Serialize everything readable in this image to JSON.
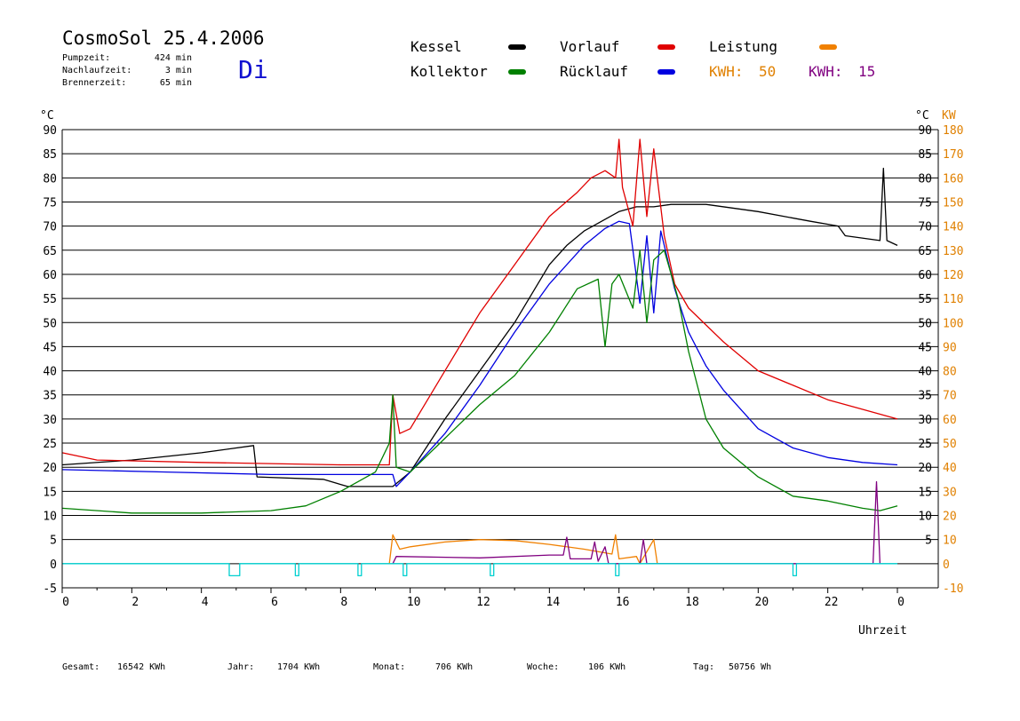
{
  "header": {
    "title": "CosmoSol 25.4.2006",
    "weekday": "Di",
    "stats": [
      {
        "label": "Pumpzeit:",
        "value": "424 min"
      },
      {
        "label": "Nachlaufzeit:",
        "value": "3 min"
      },
      {
        "label": "Brennerzeit:",
        "value": "65 min"
      }
    ]
  },
  "legend": {
    "items": [
      {
        "label": "Kessel",
        "color": "#000000"
      },
      {
        "label": "Vorlauf",
        "color": "#e00000"
      },
      {
        "label": "Leistung",
        "color": "#f08000"
      },
      {
        "label": "Kollektor",
        "color": "#008000"
      },
      {
        "label": "Rücklauf",
        "color": "#0000e0"
      }
    ],
    "kwh_orange_label": "KWH:",
    "kwh_orange_value": "50",
    "kwh_orange_color": "#e08000",
    "kwh_purple_label": "KWH:",
    "kwh_purple_value": "15",
    "kwh_purple_color": "#800080"
  },
  "footer": [
    {
      "label": "Gesamt:",
      "value": "16542 KWh"
    },
    {
      "label": "Jahr:",
      "value": "1704 KWh"
    },
    {
      "label": "Monat:",
      "value": "706 KWh"
    },
    {
      "label": "Woche:",
      "value": "106 KWh"
    },
    {
      "label": "Tag:",
      "value": "50756 Wh"
    }
  ],
  "chart_data": {
    "type": "line",
    "xlabel": "Uhrzeit",
    "ylabel_left": "°C",
    "ylabel_right_1": "°C",
    "ylabel_right_2": "KW",
    "xlim": [
      0,
      24
    ],
    "ylim": [
      -5,
      90
    ],
    "grid": true,
    "x_ticks": [
      "0",
      "2",
      "4",
      "6",
      "8",
      "10",
      "12",
      "14",
      "16",
      "18",
      "20",
      "22",
      "0"
    ],
    "y_ticks_left": [
      "-5",
      "0",
      "5",
      "10",
      "15",
      "20",
      "25",
      "30",
      "35",
      "40",
      "45",
      "50",
      "55",
      "60",
      "65",
      "70",
      "75",
      "80",
      "85",
      "90"
    ],
    "y_ticks_right": [
      "5",
      "10",
      "15",
      "20",
      "25",
      "30",
      "35",
      "40",
      "45",
      "50",
      "55",
      "60",
      "65",
      "70",
      "75",
      "80",
      "85",
      "90"
    ],
    "kw_ticks": [
      "-10",
      "0",
      "10",
      "20",
      "30",
      "40",
      "50",
      "60",
      "70",
      "80",
      "90",
      "100",
      "110",
      "120",
      "130",
      "140",
      "150",
      "160",
      "170",
      "180"
    ],
    "series": [
      {
        "name": "Kessel",
        "color": "#000000",
        "points": [
          [
            0,
            20.5
          ],
          [
            2,
            21.5
          ],
          [
            4,
            23
          ],
          [
            5.5,
            24.5
          ],
          [
            5.6,
            18
          ],
          [
            7.5,
            17.5
          ],
          [
            8.2,
            16
          ],
          [
            9.5,
            16
          ],
          [
            10,
            19
          ],
          [
            11,
            30
          ],
          [
            12,
            40
          ],
          [
            13,
            50
          ],
          [
            14,
            62
          ],
          [
            14.5,
            66
          ],
          [
            15,
            69
          ],
          [
            15.5,
            71
          ],
          [
            16,
            73
          ],
          [
            16.5,
            74
          ],
          [
            17,
            74
          ],
          [
            17.5,
            74.5
          ],
          [
            18.5,
            74.5
          ],
          [
            20,
            73
          ],
          [
            21.5,
            71
          ],
          [
            22.3,
            70
          ],
          [
            22.5,
            68
          ],
          [
            23.5,
            67
          ],
          [
            23.6,
            82
          ],
          [
            23.7,
            67
          ],
          [
            24,
            66
          ]
        ]
      },
      {
        "name": "Vorlauf",
        "color": "#e00000",
        "points": [
          [
            0,
            23
          ],
          [
            1,
            21.5
          ],
          [
            4,
            21
          ],
          [
            8,
            20.5
          ],
          [
            9.4,
            20.5
          ],
          [
            9.5,
            35
          ],
          [
            9.7,
            27
          ],
          [
            10,
            28
          ],
          [
            11,
            40
          ],
          [
            12,
            52
          ],
          [
            13,
            62
          ],
          [
            14,
            72
          ],
          [
            14.8,
            77
          ],
          [
            15.2,
            80
          ],
          [
            15.6,
            81.5
          ],
          [
            15.9,
            80
          ],
          [
            16,
            88
          ],
          [
            16.1,
            78
          ],
          [
            16.4,
            70
          ],
          [
            16.6,
            88
          ],
          [
            16.8,
            72
          ],
          [
            17,
            86
          ],
          [
            17.3,
            68
          ],
          [
            17.6,
            58
          ],
          [
            18,
            53
          ],
          [
            19,
            46
          ],
          [
            20,
            40
          ],
          [
            21,
            37
          ],
          [
            22,
            34
          ],
          [
            23,
            32
          ],
          [
            24,
            30
          ]
        ]
      },
      {
        "name": "Rücklauf",
        "color": "#0000e0",
        "points": [
          [
            0,
            19.5
          ],
          [
            3,
            19
          ],
          [
            6,
            18.5
          ],
          [
            9.5,
            18.5
          ],
          [
            9.6,
            16
          ],
          [
            10,
            19
          ],
          [
            11,
            27
          ],
          [
            12,
            37
          ],
          [
            13,
            48
          ],
          [
            14,
            58
          ],
          [
            15,
            66
          ],
          [
            15.6,
            69.5
          ],
          [
            16,
            71
          ],
          [
            16.3,
            70.5
          ],
          [
            16.6,
            54
          ],
          [
            16.8,
            68
          ],
          [
            17,
            52
          ],
          [
            17.2,
            69
          ],
          [
            17.6,
            57
          ],
          [
            18,
            48
          ],
          [
            18.5,
            41
          ],
          [
            19,
            36
          ],
          [
            20,
            28
          ],
          [
            21,
            24
          ],
          [
            22,
            22
          ],
          [
            23,
            21
          ],
          [
            24,
            20.5
          ]
        ]
      },
      {
        "name": "Kollektor",
        "color": "#008000",
        "points": [
          [
            0,
            11.5
          ],
          [
            2,
            10.5
          ],
          [
            4,
            10.5
          ],
          [
            6,
            11
          ],
          [
            7,
            12
          ],
          [
            8,
            15
          ],
          [
            9,
            19
          ],
          [
            9.4,
            25
          ],
          [
            9.5,
            35
          ],
          [
            9.6,
            20
          ],
          [
            10,
            19
          ],
          [
            11,
            26
          ],
          [
            12,
            33
          ],
          [
            13,
            39
          ],
          [
            14,
            48
          ],
          [
            14.8,
            57
          ],
          [
            15.4,
            59
          ],
          [
            15.6,
            45
          ],
          [
            15.8,
            58
          ],
          [
            16,
            60
          ],
          [
            16.4,
            53
          ],
          [
            16.6,
            65
          ],
          [
            16.8,
            50
          ],
          [
            17,
            63
          ],
          [
            17.3,
            65
          ],
          [
            17.7,
            55
          ],
          [
            18,
            44
          ],
          [
            18.5,
            30
          ],
          [
            19,
            24
          ],
          [
            20,
            18
          ],
          [
            21,
            14
          ],
          [
            22,
            13
          ],
          [
            23,
            11.5
          ],
          [
            23.5,
            11
          ],
          [
            24,
            12
          ]
        ]
      },
      {
        "name": "Leistung",
        "color": "#f08000",
        "points": [
          [
            9.4,
            0
          ],
          [
            9.5,
            6
          ],
          [
            9.7,
            3
          ],
          [
            10,
            3.5
          ],
          [
            11,
            4.5
          ],
          [
            12,
            5
          ],
          [
            13,
            4.8
          ],
          [
            14,
            4
          ],
          [
            15,
            3
          ],
          [
            15.8,
            2
          ],
          [
            15.9,
            6
          ],
          [
            16,
            1
          ],
          [
            16.5,
            1.5
          ],
          [
            16.6,
            0
          ],
          [
            17,
            5
          ],
          [
            17.1,
            0
          ]
        ]
      },
      {
        "name": "",
        "color": "#800080",
        "points": [
          [
            9.5,
            0
          ],
          [
            9.6,
            1.5
          ],
          [
            12,
            1.2
          ],
          [
            14,
            1.8
          ],
          [
            14.4,
            1.8
          ],
          [
            14.5,
            5.5
          ],
          [
            14.6,
            1
          ],
          [
            15.2,
            1
          ],
          [
            15.3,
            4.5
          ],
          [
            15.4,
            0.5
          ],
          [
            15.6,
            3.5
          ],
          [
            15.7,
            0
          ],
          [
            16.6,
            0
          ],
          [
            16.7,
            5
          ],
          [
            16.8,
            0
          ],
          [
            18,
            0
          ],
          [
            23.3,
            0
          ],
          [
            23.4,
            17
          ],
          [
            23.5,
            0
          ]
        ]
      },
      {
        "name": "",
        "color": "#00d0d0",
        "points": [
          [
            0,
            0
          ],
          [
            4.8,
            0
          ],
          [
            4.8,
            -2.5
          ],
          [
            5.1,
            -2.5
          ],
          [
            5.1,
            0
          ],
          [
            6.7,
            0
          ],
          [
            6.7,
            -2.5
          ],
          [
            6.8,
            -2.5
          ],
          [
            6.8,
            0
          ],
          [
            8.5,
            0
          ],
          [
            8.5,
            -2.5
          ],
          [
            8.6,
            -2.5
          ],
          [
            8.6,
            0
          ],
          [
            9.8,
            0
          ],
          [
            9.8,
            -2.5
          ],
          [
            9.9,
            -2.5
          ],
          [
            9.9,
            0
          ],
          [
            12.3,
            0
          ],
          [
            12.3,
            -2.5
          ],
          [
            12.4,
            -2.5
          ],
          [
            12.4,
            0
          ],
          [
            15.9,
            0
          ],
          [
            15.9,
            -2.5
          ],
          [
            16,
            -2.5
          ],
          [
            16,
            0
          ],
          [
            21,
            0
          ],
          [
            21,
            -2.5
          ],
          [
            21.1,
            -2.5
          ],
          [
            21.1,
            0
          ],
          [
            24,
            0
          ]
        ]
      }
    ]
  }
}
